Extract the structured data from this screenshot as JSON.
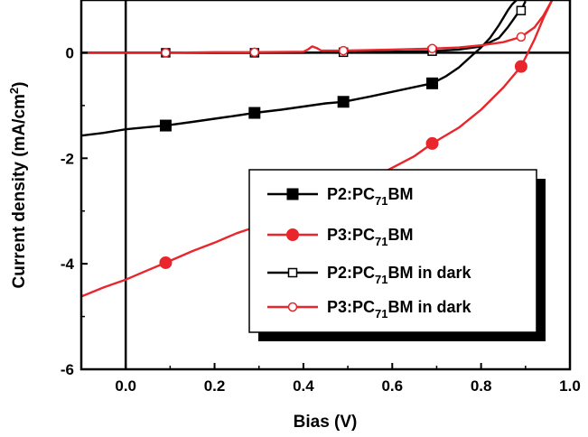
{
  "chart_data": {
    "type": "line",
    "xlabel": "Bias (V)",
    "ylabel": "Current density",
    "ylabel_unit_prefix": "(mA/cm",
    "ylabel_unit_exp": "2",
    "ylabel_unit_suffix": ")",
    "xlim": [
      -0.1,
      1.0
    ],
    "ylim": [
      -6,
      1.0
    ],
    "xticks": [
      0.0,
      0.2,
      0.4,
      0.6,
      0.8,
      1.0
    ],
    "xtick_labels": [
      "0.0",
      "0.2",
      "0.4",
      "0.6",
      "0.8",
      "1.0"
    ],
    "yticks": [
      -6,
      -4,
      -2,
      0
    ],
    "ytick_labels": [
      "-6",
      "-4",
      "-2",
      "0"
    ],
    "grid": false,
    "legend_position": "lower-right",
    "series": [
      {
        "name_prefix": "P2:PC",
        "name_sub": "71",
        "name_suffix": "BM",
        "color": "#000000",
        "marker": "filled-square",
        "x": [
          -0.1,
          -0.05,
          0.0,
          0.05,
          0.09,
          0.15,
          0.2,
          0.25,
          0.29,
          0.35,
          0.4,
          0.45,
          0.49,
          0.55,
          0.6,
          0.65,
          0.69,
          0.72,
          0.75,
          0.78,
          0.8,
          0.82,
          0.84,
          0.86,
          0.87,
          0.88
        ],
        "y": [
          -1.57,
          -1.52,
          -1.45,
          -1.41,
          -1.38,
          -1.31,
          -1.25,
          -1.19,
          -1.14,
          -1.08,
          -1.02,
          -0.96,
          -0.93,
          -0.83,
          -0.74,
          -0.65,
          -0.58,
          -0.45,
          -0.28,
          -0.05,
          0.1,
          0.28,
          0.52,
          0.8,
          0.92,
          1.0
        ],
        "marker_x": [
          0.09,
          0.29,
          0.49,
          0.69
        ],
        "marker_y": [
          -1.38,
          -1.14,
          -0.93,
          -0.58
        ]
      },
      {
        "name_prefix": "P3:PC",
        "name_sub": "71",
        "name_suffix": "BM",
        "color": "#e8262b",
        "marker": "filled-circle",
        "x": [
          -0.1,
          -0.05,
          0.0,
          0.05,
          0.09,
          0.15,
          0.2,
          0.25,
          0.3,
          0.35,
          0.4,
          0.45,
          0.5,
          0.55,
          0.6,
          0.65,
          0.69,
          0.75,
          0.8,
          0.85,
          0.89,
          0.92,
          0.94,
          0.96
        ],
        "y": [
          -4.62,
          -4.45,
          -4.3,
          -4.12,
          -3.98,
          -3.76,
          -3.6,
          -3.42,
          -3.28,
          -3.12,
          -2.95,
          -2.8,
          -2.62,
          -2.4,
          -2.18,
          -1.96,
          -1.72,
          -1.42,
          -1.08,
          -0.66,
          -0.26,
          0.25,
          0.65,
          1.0
        ],
        "marker_x": [
          0.09,
          0.69,
          0.89
        ],
        "marker_y": [
          -3.98,
          -1.72,
          -0.26
        ]
      },
      {
        "name_prefix": "P2:PC",
        "name_sub": "71",
        "name_suffix": "BM in dark",
        "color": "#000000",
        "marker": "open-square",
        "x": [
          -0.1,
          0.0,
          0.09,
          0.2,
          0.29,
          0.4,
          0.49,
          0.6,
          0.69,
          0.75,
          0.8,
          0.84,
          0.86,
          0.88,
          0.89,
          0.9
        ],
        "y": [
          0.0,
          0.0,
          0.0,
          0.0,
          0.0,
          0.0,
          0.01,
          0.02,
          0.03,
          0.06,
          0.12,
          0.28,
          0.48,
          0.72,
          0.8,
          0.98
        ],
        "marker_x": [
          0.09,
          0.29,
          0.49,
          0.69,
          0.89
        ],
        "marker_y": [
          0.0,
          0.0,
          0.01,
          0.03,
          0.8
        ]
      },
      {
        "name_prefix": "P3:PC",
        "name_sub": "71",
        "name_suffix": "BM in dark",
        "color": "#e8262b",
        "marker": "open-circle",
        "x": [
          -0.1,
          0.0,
          0.09,
          0.2,
          0.29,
          0.4,
          0.41,
          0.42,
          0.43,
          0.44,
          0.49,
          0.6,
          0.69,
          0.75,
          0.8,
          0.85,
          0.89,
          0.92,
          0.94,
          0.96
        ],
        "y": [
          0.0,
          0.0,
          0.0,
          0.01,
          0.01,
          0.02,
          0.06,
          0.12,
          0.09,
          0.04,
          0.04,
          0.06,
          0.08,
          0.1,
          0.14,
          0.2,
          0.3,
          0.48,
          0.7,
          1.0
        ],
        "marker_x": [
          0.09,
          0.29,
          0.49,
          0.69,
          0.89
        ],
        "marker_y": [
          0.0,
          0.01,
          0.04,
          0.08,
          0.3
        ]
      }
    ]
  }
}
